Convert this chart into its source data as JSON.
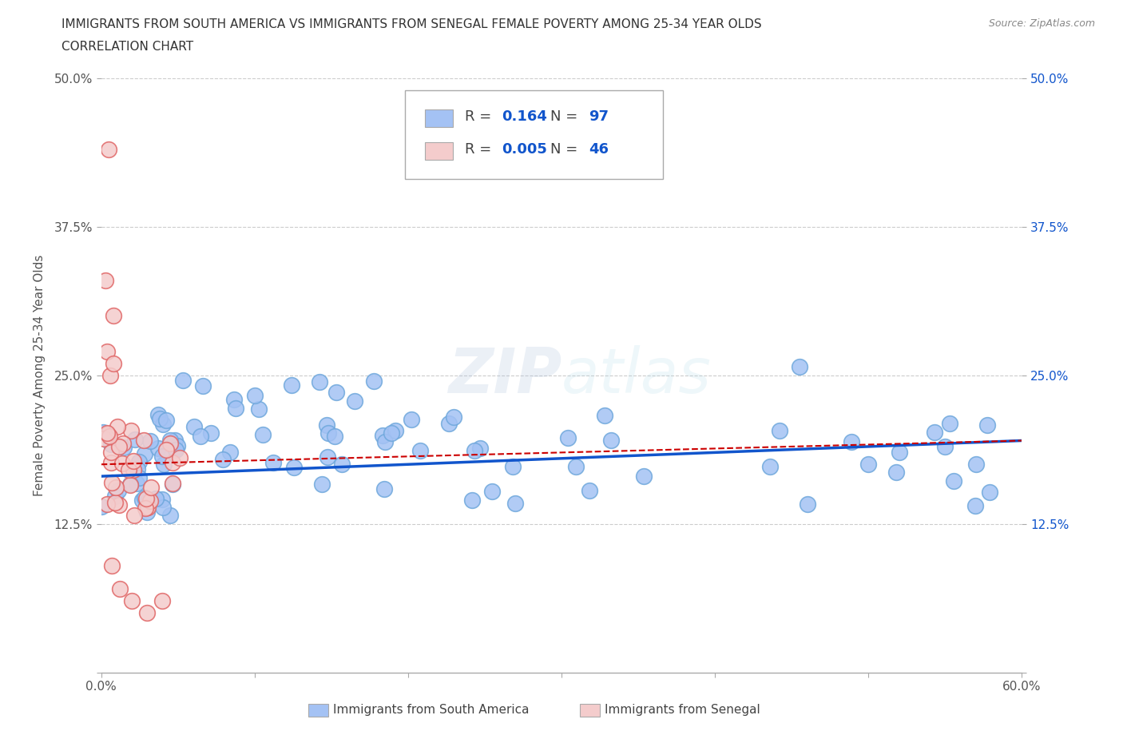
{
  "title_line1": "IMMIGRANTS FROM SOUTH AMERICA VS IMMIGRANTS FROM SENEGAL FEMALE POVERTY AMONG 25-34 YEAR OLDS",
  "title_line2": "CORRELATION CHART",
  "source": "Source: ZipAtlas.com",
  "ylabel": "Female Poverty Among 25-34 Year Olds",
  "xlim": [
    0.0,
    0.6
  ],
  "ylim": [
    0.0,
    0.5
  ],
  "xticks": [
    0.0,
    0.1,
    0.2,
    0.3,
    0.4,
    0.5,
    0.6
  ],
  "yticks": [
    0.0,
    0.125,
    0.25,
    0.375,
    0.5
  ],
  "blue_color": "#a4c2f4",
  "pink_color": "#f4cccc",
  "blue_dot_edge": "#6fa8dc",
  "pink_dot_edge": "#e06666",
  "blue_line_color": "#1155cc",
  "pink_line_color": "#cc0000",
  "grid_color": "#cccccc",
  "watermark": "ZIPatlas",
  "legend_R1": "0.164",
  "legend_N1": "97",
  "legend_R2": "0.005",
  "legend_N2": "46",
  "blue_trend_x0": 0.0,
  "blue_trend_y0": 0.165,
  "blue_trend_x1": 0.6,
  "blue_trend_y1": 0.195,
  "pink_trend_x0": 0.0,
  "pink_trend_y0": 0.175,
  "pink_trend_x1": 0.6,
  "pink_trend_y1": 0.195
}
